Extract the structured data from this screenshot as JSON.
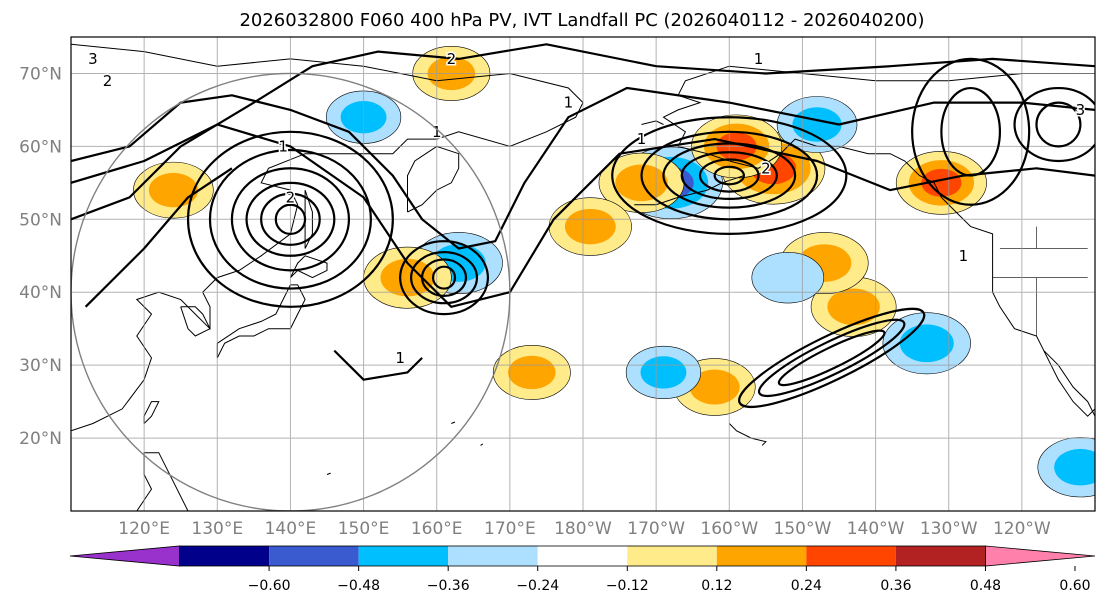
{
  "title": "2026032800 F060 400 hPa PV, IVT Landfall PC (2026040112 - 2026040200)",
  "map": {
    "projection": "plate-carree, Pacific-centred",
    "lon_range": [
      110,
      250
    ],
    "lat_range": [
      10,
      75
    ],
    "gridlines": true,
    "lat_labels": [
      "20°N",
      "30°N",
      "40°N",
      "50°N",
      "60°N",
      "70°N"
    ],
    "lat_values": [
      20,
      30,
      40,
      50,
      60,
      70
    ],
    "lon_labels": [
      "120°E",
      "130°E",
      "140°E",
      "150°E",
      "160°E",
      "170°E",
      "180°W",
      "170°W",
      "160°W",
      "150°W",
      "140°W",
      "130°W",
      "120°W"
    ],
    "lon_values": [
      120,
      130,
      140,
      150,
      160,
      170,
      180,
      190,
      200,
      210,
      220,
      230,
      240
    ]
  },
  "pv_contours": {
    "labels": [
      "1",
      "1",
      "1",
      "1",
      "1",
      "1",
      "1",
      "2",
      "2",
      "2",
      "2",
      "3",
      "3"
    ],
    "color": "#000000"
  },
  "circle": {
    "center_lon": 140,
    "center_lat": 40,
    "radius_deg": 30,
    "color": "#808080"
  },
  "colorbar": {
    "levels": [
      "−0.60",
      "−0.48",
      "−0.36",
      "−0.24",
      "−0.12",
      "0.12",
      "0.24",
      "0.36",
      "0.48",
      "0.60"
    ],
    "colors": [
      "#9932CC",
      "#00008B",
      "#3A5BD0",
      "#00BFFF",
      "#ADDFFF",
      "#FFFFFF",
      "#FFEB8A",
      "#FFA500",
      "#FF4500",
      "#B22222",
      "#FF80AB"
    ],
    "extend": "both"
  },
  "anomaly_patches": [
    {
      "lon": 192,
      "lat": 55,
      "value": -0.52
    },
    {
      "lon": 206,
      "lat": 57,
      "value": 0.52
    },
    {
      "lon": 201,
      "lat": 60,
      "value": 0.42
    },
    {
      "lon": 188,
      "lat": 55,
      "value": 0.38
    },
    {
      "lon": 163,
      "lat": 44,
      "value": -0.4
    },
    {
      "lon": 156,
      "lat": 42,
      "value": 0.4
    },
    {
      "lon": 162,
      "lat": 70,
      "value": 0.32
    },
    {
      "lon": 212,
      "lat": 63,
      "value": -0.34
    },
    {
      "lon": 217,
      "lat": 38,
      "value": 0.38
    },
    {
      "lon": 227,
      "lat": 33,
      "value": -0.4
    },
    {
      "lon": 229,
      "lat": 55,
      "value": 0.42
    },
    {
      "lon": 181,
      "lat": 49,
      "value": 0.36
    },
    {
      "lon": 248,
      "lat": 16,
      "value": -0.38
    },
    {
      "lon": 213,
      "lat": 44,
      "value": 0.4
    },
    {
      "lon": 173,
      "lat": 29,
      "value": 0.32
    },
    {
      "lon": 198,
      "lat": 27,
      "value": 0.35
    },
    {
      "lon": 191,
      "lat": 29,
      "value": -0.3
    },
    {
      "lon": 150,
      "lat": 64,
      "value": -0.3
    },
    {
      "lon": 124,
      "lat": 54,
      "value": 0.34
    },
    {
      "lon": 208,
      "lat": 42,
      "value": -0.28
    }
  ]
}
